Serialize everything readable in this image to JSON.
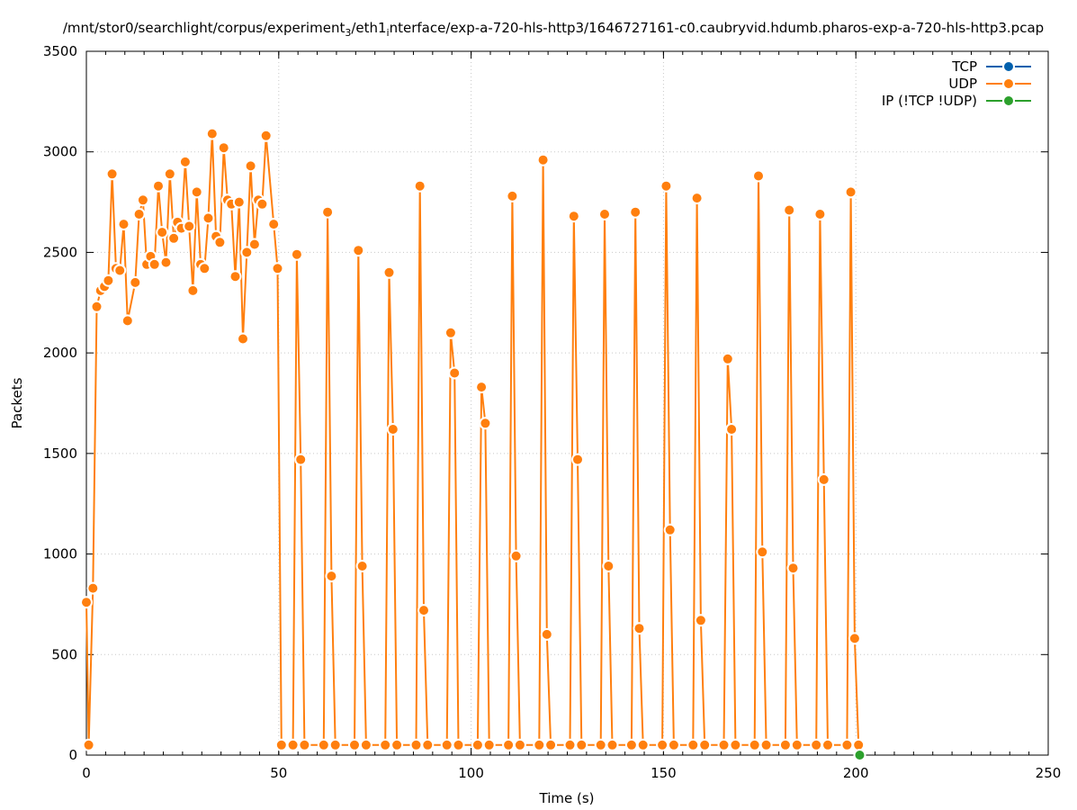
{
  "chart_data": {
    "type": "line",
    "title_main": "/mnt/stor0/searchlight/corpus/experiment",
    "title_sub": "3",
    "title_mid": "/eth1",
    "title_sub2": "i",
    "title_end": "nterface/exp-a-720-hls-http3/1646727161-c0.caubryvid.hdumb.pharos-exp-a-720-hls-http3.pcap",
    "xlabel": "Time (s)",
    "ylabel": "Packets",
    "xlim": [
      0,
      250
    ],
    "ylim": [
      0,
      3500
    ],
    "x_ticks": [
      0,
      50,
      100,
      150,
      200,
      250
    ],
    "y_ticks": [
      0,
      500,
      1000,
      1500,
      2000,
      2500,
      3000,
      3500
    ],
    "grid": true,
    "legend_position": "top-right",
    "series": [
      {
        "name": "TCP",
        "color": "#0060ad",
        "points": []
      },
      {
        "name": "UDP",
        "color": "#ff7f0e",
        "points": [
          [
            0,
            760
          ],
          [
            0.6,
            50
          ],
          [
            1.7,
            830
          ],
          [
            2.7,
            2230
          ],
          [
            3.7,
            2310
          ],
          [
            4.7,
            2330
          ],
          [
            5.7,
            2360
          ],
          [
            6.7,
            2890
          ],
          [
            7.7,
            2420
          ],
          [
            8.7,
            2410
          ],
          [
            9.7,
            2640
          ],
          [
            10.7,
            2160
          ],
          [
            12.7,
            2350
          ],
          [
            13.7,
            2690
          ],
          [
            14.7,
            2760
          ],
          [
            15.7,
            2440
          ],
          [
            16.7,
            2480
          ],
          [
            17.7,
            2440
          ],
          [
            18.7,
            2830
          ],
          [
            19.7,
            2600
          ],
          [
            20.7,
            2450
          ],
          [
            21.7,
            2890
          ],
          [
            22.7,
            2570
          ],
          [
            23.7,
            2650
          ],
          [
            24.7,
            2620
          ],
          [
            25.7,
            2950
          ],
          [
            26.7,
            2630
          ],
          [
            27.7,
            2310
          ],
          [
            28.7,
            2800
          ],
          [
            29.7,
            2440
          ],
          [
            30.7,
            2420
          ],
          [
            31.7,
            2670
          ],
          [
            32.7,
            3090
          ],
          [
            33.7,
            2580
          ],
          [
            34.7,
            2550
          ],
          [
            35.7,
            3020
          ],
          [
            36.7,
            2760
          ],
          [
            37.7,
            2740
          ],
          [
            38.7,
            2380
          ],
          [
            39.7,
            2750
          ],
          [
            40.7,
            2070
          ],
          [
            41.7,
            2500
          ],
          [
            42.7,
            2930
          ],
          [
            43.7,
            2540
          ],
          [
            44.7,
            2760
          ],
          [
            45.7,
            2740
          ],
          [
            46.7,
            3080
          ],
          [
            48.7,
            2640
          ],
          [
            49.7,
            2420
          ],
          [
            50.7,
            50
          ],
          [
            53.7,
            50
          ],
          [
            54.7,
            2490
          ],
          [
            55.7,
            1470
          ],
          [
            56.7,
            50
          ],
          [
            61.7,
            50
          ],
          [
            62.7,
            2700
          ],
          [
            63.7,
            890
          ],
          [
            64.7,
            50
          ],
          [
            69.7,
            50
          ],
          [
            70.7,
            2510
          ],
          [
            71.7,
            940
          ],
          [
            72.7,
            50
          ],
          [
            77.7,
            50
          ],
          [
            78.7,
            2400
          ],
          [
            79.7,
            1620
          ],
          [
            80.7,
            50
          ],
          [
            85.7,
            50
          ],
          [
            86.7,
            2830
          ],
          [
            87.7,
            720
          ],
          [
            88.7,
            50
          ],
          [
            93.7,
            50
          ],
          [
            94.7,
            2100
          ],
          [
            95.7,
            1900
          ],
          [
            96.7,
            50
          ],
          [
            101.7,
            50
          ],
          [
            102.7,
            1830
          ],
          [
            103.7,
            1650
          ],
          [
            104.7,
            50
          ],
          [
            109.7,
            50
          ],
          [
            110.7,
            2780
          ],
          [
            111.7,
            990
          ],
          [
            112.7,
            50
          ],
          [
            117.7,
            50
          ],
          [
            118.7,
            2960
          ],
          [
            119.7,
            600
          ],
          [
            120.7,
            50
          ],
          [
            125.7,
            50
          ],
          [
            126.7,
            2680
          ],
          [
            127.7,
            1470
          ],
          [
            128.7,
            50
          ],
          [
            133.7,
            50
          ],
          [
            134.7,
            2690
          ],
          [
            135.7,
            940
          ],
          [
            136.7,
            50
          ],
          [
            141.7,
            50
          ],
          [
            142.7,
            2700
          ],
          [
            143.7,
            630
          ],
          [
            144.7,
            50
          ],
          [
            149.7,
            50
          ],
          [
            150.7,
            2830
          ],
          [
            151.7,
            1120
          ],
          [
            152.7,
            50
          ],
          [
            157.7,
            50
          ],
          [
            158.7,
            2770
          ],
          [
            159.7,
            670
          ],
          [
            160.7,
            50
          ],
          [
            165.7,
            50
          ],
          [
            166.7,
            1970
          ],
          [
            167.7,
            1620
          ],
          [
            168.7,
            50
          ],
          [
            173.7,
            50
          ],
          [
            174.7,
            2880
          ],
          [
            175.7,
            1010
          ],
          [
            176.7,
            50
          ],
          [
            181.7,
            50
          ],
          [
            182.7,
            2710
          ],
          [
            183.7,
            930
          ],
          [
            184.7,
            50
          ],
          [
            189.7,
            50
          ],
          [
            190.7,
            2690
          ],
          [
            191.7,
            1370
          ],
          [
            192.7,
            50
          ],
          [
            197.7,
            50
          ],
          [
            198.7,
            2800
          ],
          [
            199.7,
            580
          ],
          [
            200.7,
            50
          ]
        ]
      },
      {
        "name": "IP (!TCP  !UDP)",
        "color": "#2ca02c",
        "points": [
          [
            201,
            0
          ]
        ]
      }
    ]
  }
}
